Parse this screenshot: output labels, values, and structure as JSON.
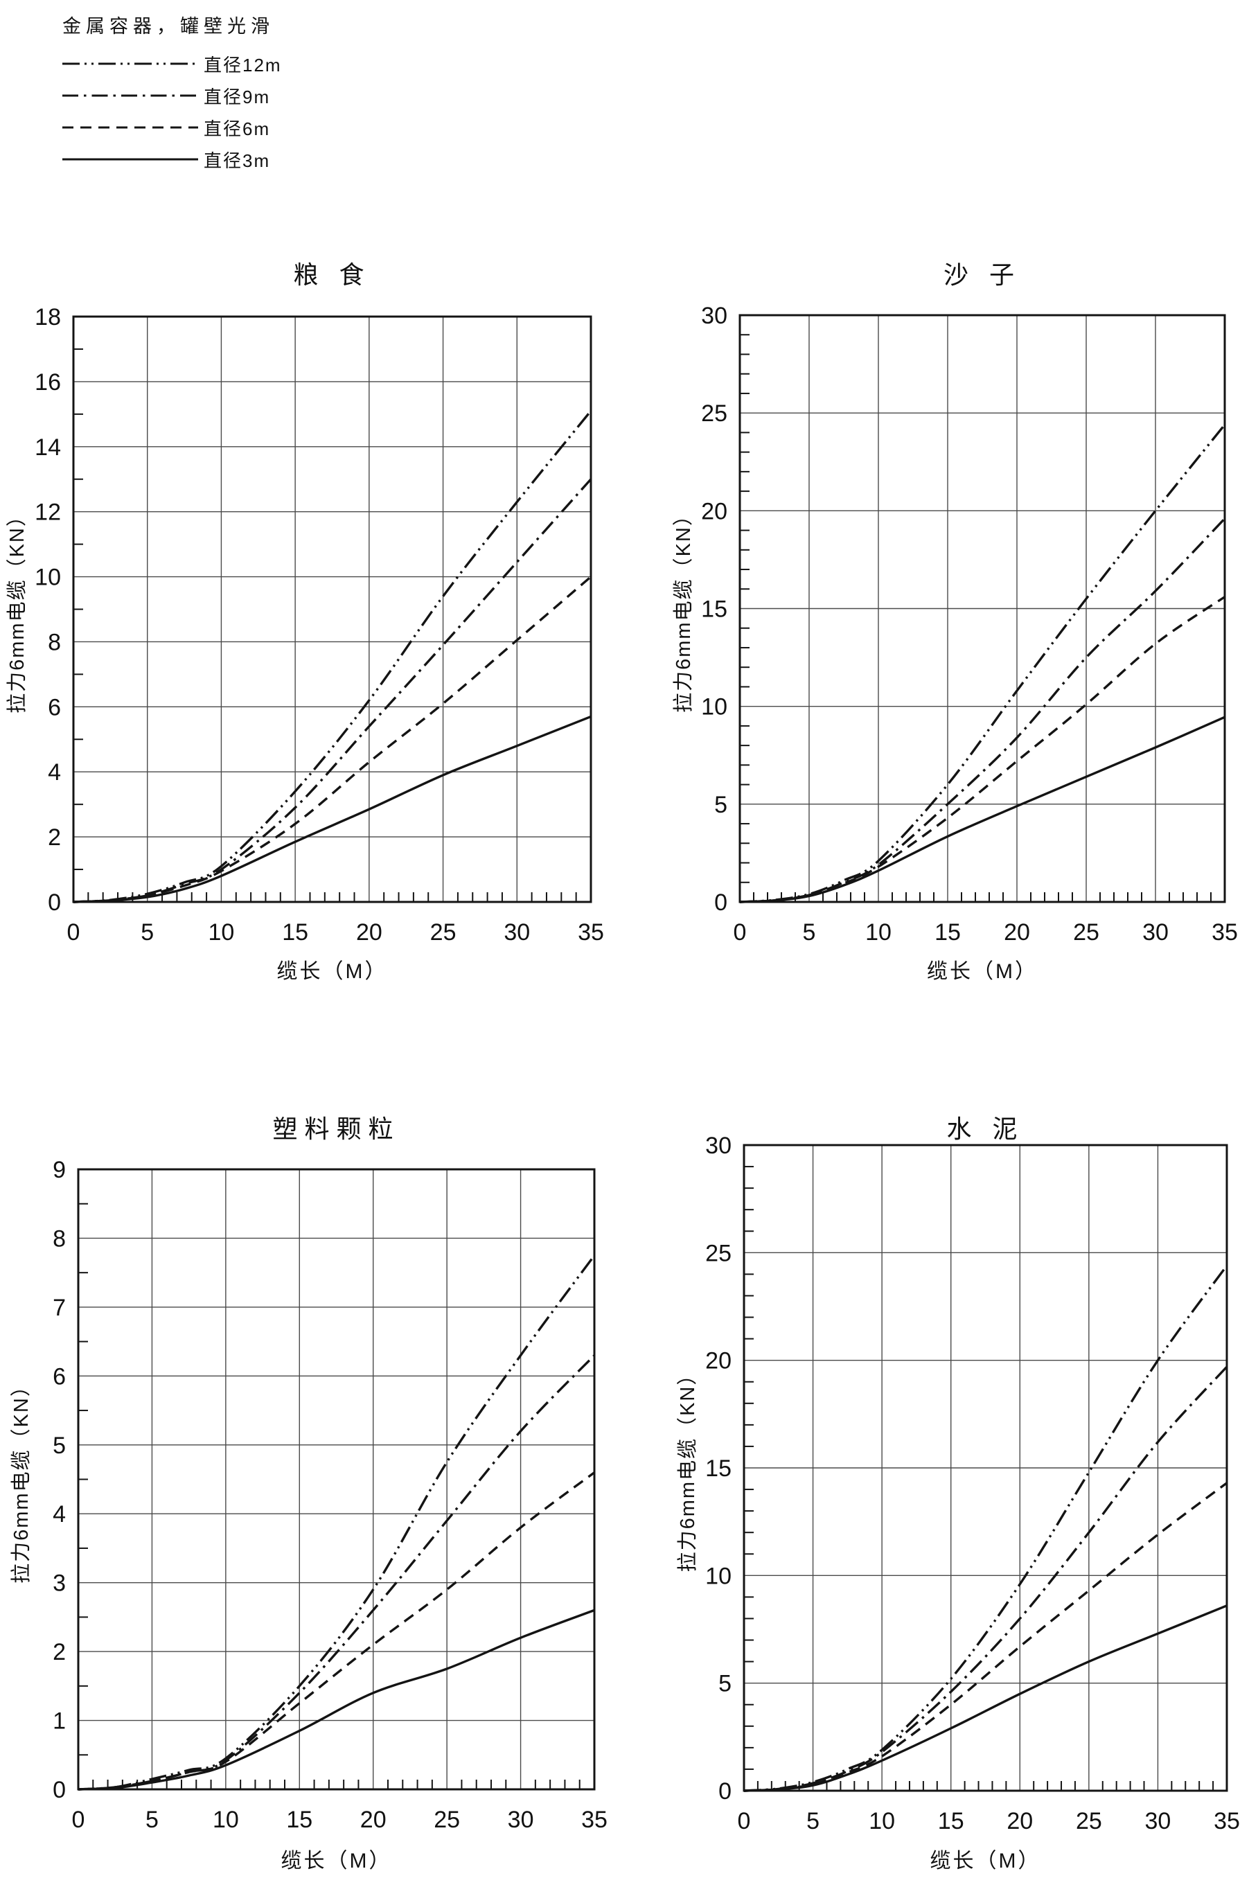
{
  "page_background": "#ffffff",
  "line_color": "#141414",
  "grid_color": "#4a4a4a",
  "legend": {
    "title": "金属容器，罐壁光滑",
    "items": [
      {
        "key": "12m",
        "label": "直径12m",
        "style": "dashdotdot"
      },
      {
        "key": "9m",
        "label": "直径9m",
        "style": "dashdot"
      },
      {
        "key": "6m",
        "label": "直径6m",
        "style": "dashed"
      },
      {
        "key": "3m",
        "label": "直径3m",
        "style": "solid"
      }
    ]
  },
  "chart_data": [
    {
      "id": "grain",
      "type": "line",
      "title": "粮 食",
      "xlabel": "缆长（M）",
      "ylabel": "拉力6mm电缆（KN）",
      "xlim": [
        0,
        35
      ],
      "ylim": [
        0,
        18
      ],
      "xticks": [
        0,
        5,
        10,
        15,
        20,
        25,
        30,
        35
      ],
      "yticks": [
        0,
        2,
        4,
        6,
        8,
        10,
        12,
        14,
        16,
        18
      ],
      "x_minor_step": 1,
      "y_minor_step": 1,
      "grid": true,
      "legend_position": "top-left-of-page",
      "x": [
        0,
        2.5,
        5,
        7.5,
        10,
        15,
        20,
        25,
        30,
        35
      ],
      "series": [
        {
          "name": "直径12m",
          "key": "12m",
          "style": "dashdotdot",
          "values": [
            0,
            0.06,
            0.25,
            0.6,
            1.1,
            3.4,
            6.2,
            9.4,
            12.3,
            15.1
          ]
        },
        {
          "name": "直径9m",
          "key": "9m",
          "style": "dashdot",
          "values": [
            0,
            0.05,
            0.2,
            0.55,
            1.0,
            2.9,
            5.4,
            7.9,
            10.45,
            13.0
          ]
        },
        {
          "name": "直径6m",
          "key": "6m",
          "style": "dashed",
          "values": [
            0,
            0.05,
            0.2,
            0.5,
            0.95,
            2.4,
            4.3,
            6.1,
            8.05,
            10.0
          ]
        },
        {
          "name": "直径3m",
          "key": "3m",
          "style": "solid",
          "values": [
            0,
            0.04,
            0.15,
            0.4,
            0.8,
            1.85,
            2.85,
            3.9,
            4.8,
            5.7
          ]
        }
      ]
    },
    {
      "id": "sand",
      "type": "line",
      "title": "沙 子",
      "xlabel": "缆长（M）",
      "ylabel": "拉力6mm电缆（KN）",
      "xlim": [
        0,
        35
      ],
      "ylim": [
        0,
        30
      ],
      "xticks": [
        0,
        5,
        10,
        15,
        20,
        25,
        30,
        35
      ],
      "yticks": [
        0,
        5,
        10,
        15,
        20,
        25,
        30
      ],
      "x_minor_step": 1,
      "y_minor_step": 1,
      "grid": true,
      "x": [
        0,
        2.5,
        5,
        7.5,
        10,
        15,
        20,
        25,
        30,
        35
      ],
      "series": [
        {
          "name": "直径12m",
          "key": "12m",
          "style": "dashdotdot",
          "values": [
            0,
            0.1,
            0.4,
            1.1,
            2.1,
            6.0,
            10.8,
            15.5,
            20.0,
            24.4
          ]
        },
        {
          "name": "直径9m",
          "key": "9m",
          "style": "dashdot",
          "values": [
            0,
            0.08,
            0.35,
            1.0,
            1.9,
            5.0,
            8.4,
            12.5,
            15.9,
            19.6
          ]
        },
        {
          "name": "直径6m",
          "key": "6m",
          "style": "dashed",
          "values": [
            0,
            0.08,
            0.35,
            0.95,
            1.8,
            4.3,
            7.2,
            10.1,
            13.2,
            15.6
          ]
        },
        {
          "name": "直径3m",
          "key": "3m",
          "style": "solid",
          "values": [
            0,
            0.07,
            0.3,
            0.85,
            1.6,
            3.35,
            4.9,
            6.4,
            7.9,
            9.45
          ]
        }
      ]
    },
    {
      "id": "plastic",
      "type": "line",
      "title": "塑料颗粒",
      "xlabel": "缆长（M）",
      "ylabel": "拉力6mm电缆（KN）",
      "xlim": [
        0,
        35
      ],
      "ylim": [
        0,
        9
      ],
      "xticks": [
        0,
        5,
        10,
        15,
        20,
        25,
        30,
        35
      ],
      "yticks": [
        0,
        1,
        2,
        3,
        4,
        5,
        6,
        7,
        8,
        9
      ],
      "x_minor_step": 1,
      "y_minor_step": 0.5,
      "grid": true,
      "x": [
        0,
        2.5,
        5,
        7.5,
        10,
        15,
        20,
        25,
        30,
        35
      ],
      "series": [
        {
          "name": "直径12m",
          "key": "12m",
          "style": "dashdotdot",
          "values": [
            0,
            0.03,
            0.15,
            0.28,
            0.45,
            1.5,
            2.9,
            4.75,
            6.3,
            7.75
          ]
        },
        {
          "name": "直径9m",
          "key": "9m",
          "style": "dashdot",
          "values": [
            0,
            0.03,
            0.12,
            0.25,
            0.42,
            1.4,
            2.6,
            3.9,
            5.2,
            6.3
          ]
        },
        {
          "name": "直径6m",
          "key": "6m",
          "style": "dashed",
          "values": [
            0,
            0.03,
            0.12,
            0.25,
            0.4,
            1.25,
            2.1,
            2.9,
            3.8,
            4.6
          ]
        },
        {
          "name": "直径3m",
          "key": "3m",
          "style": "solid",
          "values": [
            0,
            0.02,
            0.1,
            0.2,
            0.35,
            0.85,
            1.4,
            1.75,
            2.2,
            2.6
          ]
        }
      ]
    },
    {
      "id": "cement",
      "type": "line",
      "title": "水 泥",
      "xlabel": "缆长（M）",
      "ylabel": "拉力6mm电缆（KN）",
      "xlim": [
        0,
        35
      ],
      "ylim": [
        0,
        30
      ],
      "xticks": [
        0,
        5,
        10,
        15,
        20,
        25,
        30,
        35
      ],
      "yticks": [
        0,
        5,
        10,
        15,
        20,
        25,
        30
      ],
      "x_minor_step": 1,
      "y_minor_step": 1,
      "grid": true,
      "x": [
        0,
        2.5,
        5,
        7.5,
        10,
        15,
        20,
        25,
        30,
        35
      ],
      "series": [
        {
          "name": "直径12m",
          "key": "12m",
          "style": "dashdotdot",
          "values": [
            0,
            0.1,
            0.4,
            1.0,
            1.9,
            5.2,
            9.6,
            14.8,
            20.0,
            24.4
          ]
        },
        {
          "name": "直径9m",
          "key": "9m",
          "style": "dashdot",
          "values": [
            0,
            0.08,
            0.35,
            0.9,
            1.8,
            4.6,
            8.0,
            12.0,
            16.2,
            19.7
          ]
        },
        {
          "name": "直径6m",
          "key": "6m",
          "style": "dashed",
          "values": [
            0,
            0.07,
            0.3,
            0.85,
            1.6,
            4.0,
            6.7,
            9.3,
            11.9,
            14.3
          ]
        },
        {
          "name": "直径3m",
          "key": "3m",
          "style": "solid",
          "values": [
            0,
            0.06,
            0.25,
            0.75,
            1.4,
            2.9,
            4.5,
            6.0,
            7.3,
            8.6
          ]
        }
      ]
    }
  ]
}
